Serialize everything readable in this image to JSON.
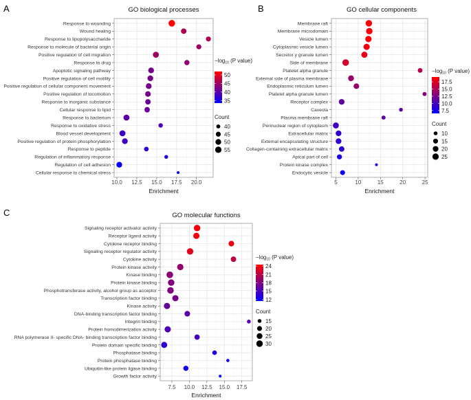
{
  "chart_data": [
    {
      "type": "scatter",
      "panel_label": "A",
      "title": "GO biological processes",
      "xlabel": "Enrichment",
      "xlim": [
        9.65,
        22.1
      ],
      "xticks": [
        10.0,
        12.5,
        15.0,
        17.5,
        20.0
      ],
      "xtick_labels": [
        "10.0",
        "12.5",
        "15.0",
        "17.5",
        "20.0"
      ],
      "categories": [
        "Response to wounding",
        "Wound healing",
        "Response to lipopolysaccharide",
        "Response to molecule of bacterial origin",
        "Positive regulation of cell migration",
        "Response to drug",
        "Apoptotic signaling pathway",
        "Positive regulation of cell motility",
        "Positive regulation of cellular component movement",
        "Positive regulation of locomotion",
        "Response to inorganic substance",
        "Cellular response to lipid",
        "Response to bacterium",
        "Response to oxidative stress",
        "Blood vessel development",
        "Positive regulation of protein phosphorylation",
        "Response to peptide",
        "Regulation of inflammatory response",
        "Regulation of cell adhesion",
        "Cellular response to chemical stress"
      ],
      "enrichment": [
        16.9,
        18.4,
        21.5,
        20.3,
        14.9,
        18.8,
        14.3,
        14.2,
        14.0,
        13.9,
        13.9,
        13.8,
        11.2,
        15.5,
        10.7,
        11.0,
        13.7,
        16.2,
        10.3,
        17.7
      ],
      "count": [
        57,
        48,
        45,
        45,
        52,
        46,
        50,
        50,
        50,
        49,
        48,
        48,
        52,
        42,
        52,
        50,
        43,
        39,
        50,
        36
      ],
      "neglog10p": [
        52,
        46,
        46,
        45,
        45,
        44,
        42,
        42,
        42,
        42,
        41,
        41,
        40,
        39,
        38,
        38,
        37,
        36,
        34,
        34
      ],
      "color_legend": {
        "title_prefix": "−log",
        "title_sub": "10",
        "title_suffix": " (P value)",
        "range": [
          33.5,
          52
        ],
        "ticks": [
          50,
          45,
          40,
          35
        ],
        "tick_labels": [
          "50",
          "45",
          "40",
          "35"
        ],
        "low_color": "#0000ff",
        "high_color": "#ff0000"
      },
      "size_legend": {
        "title": "Count",
        "values": [
          40,
          45,
          50,
          55
        ],
        "labels": [
          "40",
          "45",
          "50",
          "55"
        ],
        "range": [
          35,
          57
        ]
      }
    },
    {
      "type": "scatter",
      "panel_label": "B",
      "title": "GO cellular components",
      "xlabel": "Enrichment",
      "xlim": [
        4.0,
        25.6
      ],
      "xticks": [
        5,
        10,
        15,
        20,
        25
      ],
      "xtick_labels": [
        "5",
        "10",
        "15",
        "20",
        "25"
      ],
      "categories": [
        "Membrane raft",
        "Membrane microdomain",
        "Vesicle lumen",
        "Cytoplasmic vesicle lumen",
        "Secretor y granule lumen",
        "Side of membrane",
        "Platelet alpha granule",
        "External side of plasma membrane",
        "Endoplasmic reticulum lumen",
        "Platelet alpha granule lumen",
        "Receptor complex",
        "Caveola",
        "Plasma membrane raft",
        "Perinuclear region of cytoplasm",
        "Extracellular matrix",
        "External encapsulating structure",
        "Collagen-containing extracellular matrix",
        "Apical part of cell",
        "Protein kinase complex",
        "Endocytic vesicle"
      ],
      "enrichment": [
        12.4,
        12.5,
        12.3,
        11.9,
        11.4,
        7.2,
        23.9,
        8.4,
        9.6,
        24.9,
        6.3,
        19.6,
        15.7,
        5.0,
        5.6,
        5.6,
        6.3,
        5.8,
        14.1,
        6.5
      ],
      "count": [
        26,
        26,
        25,
        24,
        23,
        27,
        14,
        21,
        19,
        11,
        20,
        10,
        11,
        22,
        20,
        20,
        18,
        16,
        7,
        15
      ],
      "neglog10p": [
        19,
        19,
        19,
        18.5,
        18,
        17,
        15.5,
        14,
        14,
        13,
        11,
        11,
        11,
        9.5,
        9,
        9,
        8.8,
        8,
        7.5,
        7
      ],
      "color_legend": {
        "title_prefix": "−log",
        "title_sub": "10",
        "title_suffix": " (P value)",
        "range": [
          6.5,
          19.2
        ],
        "ticks": [
          17.5,
          15.0,
          12.5,
          10.0,
          7.5
        ],
        "tick_labels": [
          "17.5",
          "15.0",
          "12.5",
          "10.0",
          "7.5"
        ],
        "low_color": "#0000ff",
        "high_color": "#ff0000"
      },
      "size_legend": {
        "title": "Count",
        "values": [
          10,
          15,
          20,
          25
        ],
        "labels": [
          "10",
          "15",
          "20",
          "25"
        ],
        "range": [
          6,
          27
        ]
      }
    },
    {
      "type": "scatter",
      "panel_label": "C",
      "title": "GO molecular functions",
      "xlabel": "Enrichment",
      "xlim": [
        5.83,
        19.0
      ],
      "xticks": [
        7.5,
        10.0,
        12.5,
        15.0,
        17.5
      ],
      "xtick_labels": [
        "7.5",
        "10.0",
        "12.5",
        "15.0",
        "17.5"
      ],
      "categories": [
        "Signaling receptor activator activity",
        "Receptor ligand activity",
        "Cytokine receptor binding",
        "Signaling receptor regulator activity",
        "Cytokine activity",
        "Protein kinase activity",
        "Kinase binding",
        "Protein kinase binding",
        "Phosphotransferase activity, alcohol group as acceptor",
        "Transcription factor binding",
        "Kinase activity",
        "DNA-binding transcription factor binding",
        "Integrin binding",
        "Protein homodimerization activity",
        "RNA polymerase II- specific DNA- binding transcription factor binding",
        "Protein domain specific binding",
        "Phosphatase binding",
        "Protein phosphatase binding",
        "Ubiquitin-like protein ligase binding",
        "Growth factor activity"
      ],
      "enrichment": [
        11.1,
        11.0,
        16.0,
        10.1,
        16.3,
        8.7,
        7.2,
        7.4,
        7.3,
        8.0,
        6.8,
        9.7,
        18.5,
        6.9,
        11.1,
        6.4,
        13.6,
        15.5,
        9.5,
        14.4
      ],
      "count": [
        30,
        28,
        24,
        30,
        23,
        29,
        31,
        30,
        30,
        28,
        28,
        24,
        15,
        28,
        22,
        27,
        18,
        13,
        21,
        12
      ],
      "neglog10p": [
        24,
        24,
        23.5,
        23,
        21,
        19,
        18.5,
        18,
        18,
        17.5,
        16.5,
        16,
        16,
        15.5,
        15,
        14,
        13,
        12.5,
        12,
        11.5
      ],
      "color_legend": {
        "title_prefix": "−log",
        "title_sub": "10",
        "title_suffix": " (P value)",
        "range": [
          11.5,
          24.5
        ],
        "ticks": [
          24,
          21,
          18,
          15,
          12
        ],
        "tick_labels": [
          "24",
          "21",
          "18",
          "15",
          "12"
        ],
        "low_color": "#0000ff",
        "high_color": "#ff0000"
      },
      "size_legend": {
        "title": "Count",
        "values": [
          15,
          20,
          25,
          30
        ],
        "labels": [
          "15",
          "20",
          "25",
          "30"
        ],
        "range": [
          11,
          31
        ]
      }
    }
  ]
}
